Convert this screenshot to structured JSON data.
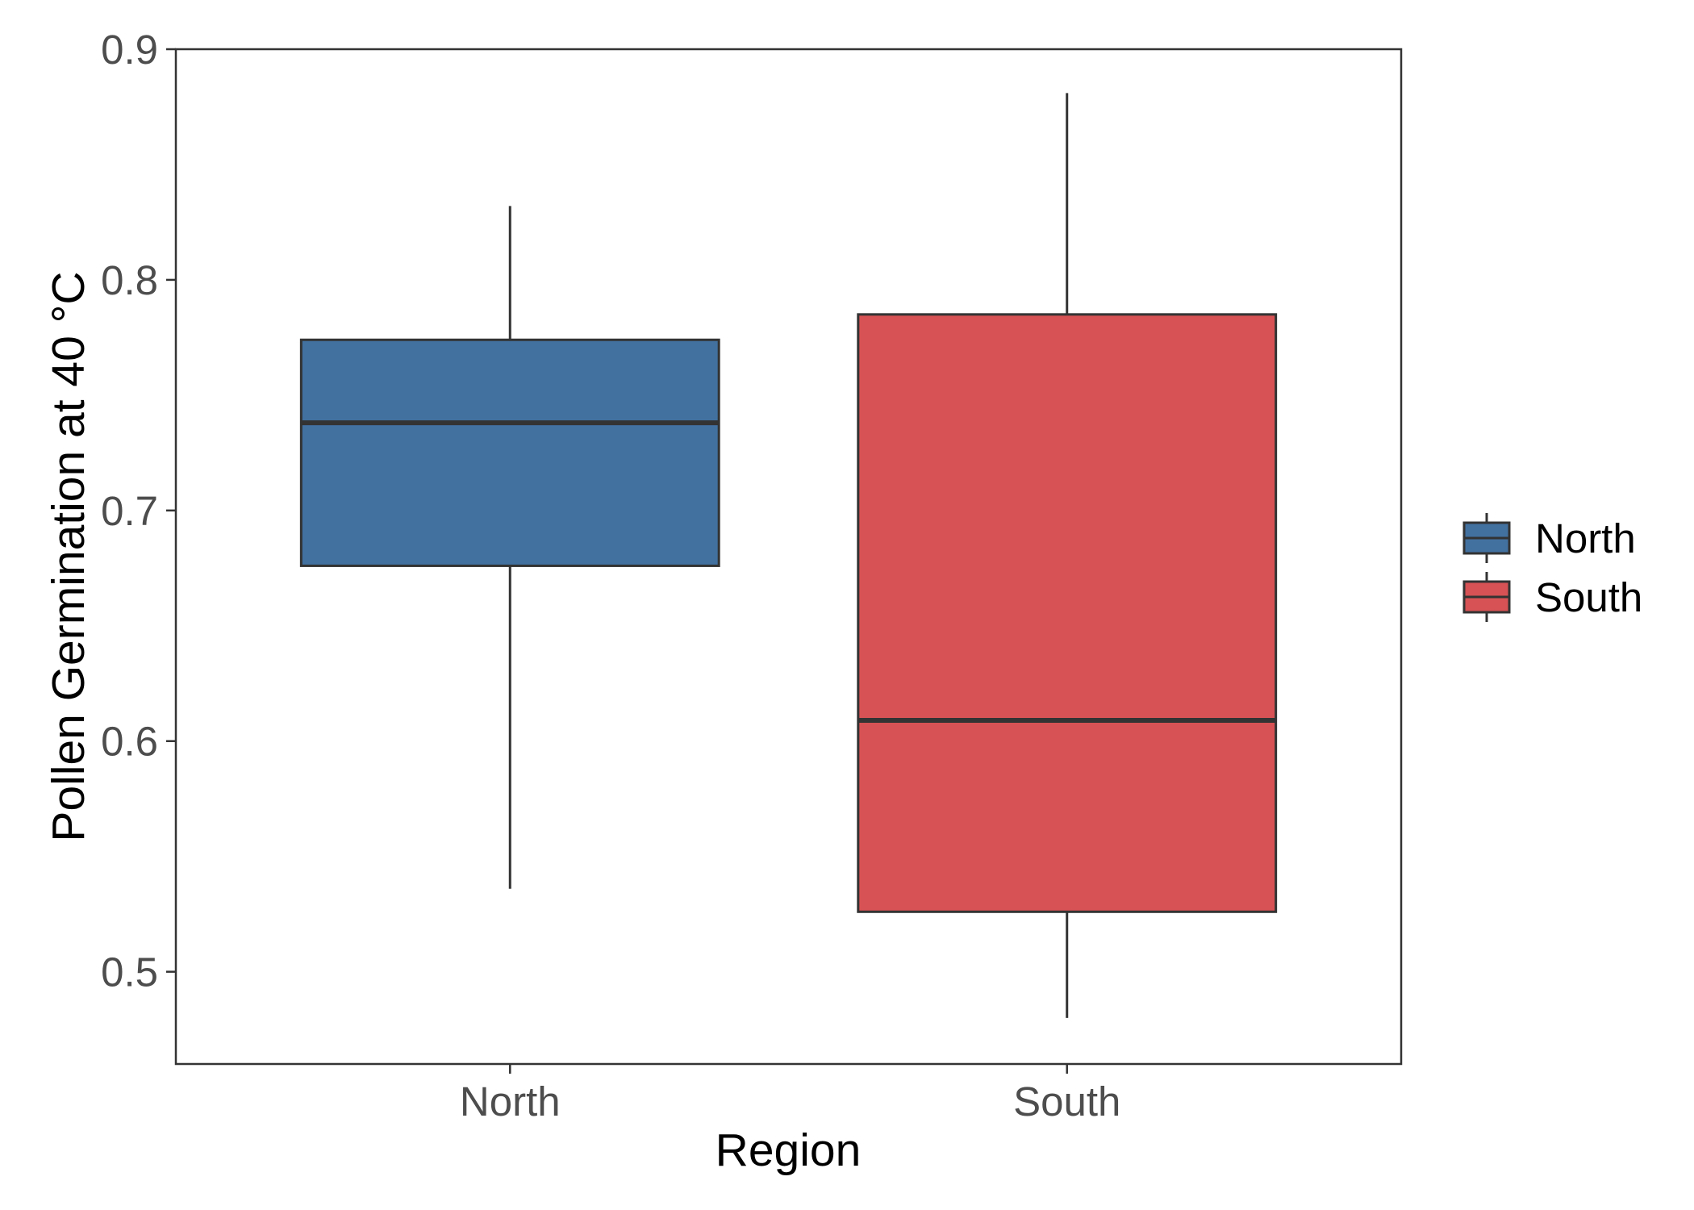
{
  "chart_data": {
    "type": "boxplot",
    "xlabel": "Region",
    "ylabel": "Pollen Germination at 40 °C",
    "categories": [
      "North",
      "South"
    ],
    "ylim": [
      0.46,
      0.9
    ],
    "yticks": [
      0.5,
      0.6,
      0.7,
      0.8,
      0.9
    ],
    "ytick_labels": [
      "0.5",
      "0.6",
      "0.7",
      "0.8",
      "0.9"
    ],
    "series": [
      {
        "name": "North",
        "color": "#4271a0",
        "min": 0.536,
        "q1": 0.676,
        "median": 0.738,
        "q3": 0.774,
        "max": 0.832
      },
      {
        "name": "South",
        "color": "#d75254",
        "min": 0.48,
        "q1": 0.526,
        "median": 0.609,
        "q3": 0.785,
        "max": 0.881
      }
    ],
    "legend": {
      "position": "right",
      "entries": [
        "North",
        "South"
      ]
    },
    "grid": false
  }
}
